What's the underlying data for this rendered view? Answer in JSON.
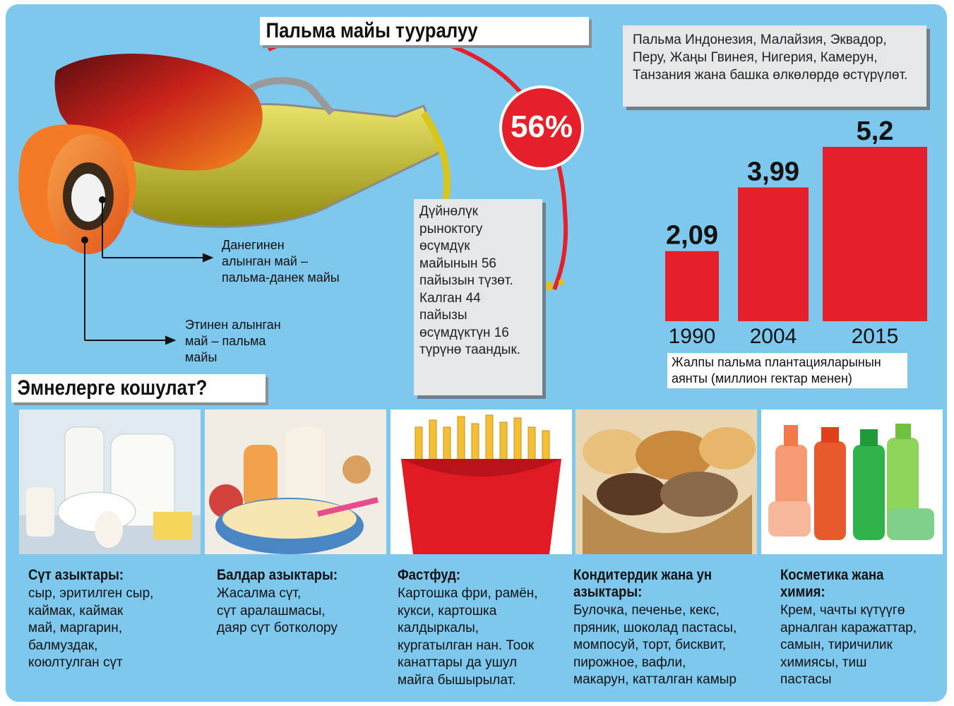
{
  "header": {
    "title": "Пальма майы тууралуу"
  },
  "growing_info": "Пальма Индонезия, Малайзия, Эквадор, Перу, Жаңы Гвинея, Нигерия, Камерун, Танзания жана башка өлкөлөрдө өстүрүлөт.",
  "percent_badge": "56%",
  "market_share": "Дүйнөлүк\nрыноктогу\nөсүмдүк\nмайынын 56\nпайызын түзөт.\nКалган 44\nпайызы\nөсүмдүктүн 16\nтүрүнө таандык.",
  "labels": {
    "kernel": "Данегинен\nалынган май –\nпальма-данек майы",
    "mesocarp": "Этинен алынган\nмай – пальма\nмайы"
  },
  "chart_data": {
    "type": "bar",
    "categories": [
      "1990",
      "2004",
      "2015"
    ],
    "values": [
      2.09,
      3.99,
      5.2
    ],
    "value_labels": [
      "2,09",
      "3,99",
      "5,2"
    ],
    "caption": "Жалпы пальма плантацияларынын\nаянты (миллион гектар менен)",
    "bar_color": "#e5202a"
  },
  "section2": {
    "title": "Эмнелерге кошулат?"
  },
  "categories": [
    {
      "title": "Сүт азыктары:",
      "text": "сыр, эритилген сыр,\nкаймак, каймак\nмай, маргарин,\nбалмуздак,\nкоюлтулган сүт"
    },
    {
      "title": "Балдар азыктары:",
      "text": "Жасалма сүт,\nсүт аралашмасы,\nдаяр сүт ботколору"
    },
    {
      "title": "Фастфуд:",
      "text": "Картошка фри, рамён,\nкукси, картошка\nкалдыркалы,\nкургатылган нан. Тоок\nканаттары да ушул\nмайга бышырылат."
    },
    {
      "title": "Кондитердик жана ун\nазыктары:",
      "text": "Булочка, печенье, кекс,\nпряник, шоколад пастасы,\nмомпосуй, торт, бисквит,\nпирожное, вафли,\nмакарун, катталган камыр"
    },
    {
      "title": "Косметика жана\nхимия:",
      "text": "Крем, чачты күтүүгө\nарналган каражаттар,\nсамын, тиричилик\nхимиясы, тиш\nпастасы"
    }
  ],
  "colors": {
    "background": "#7ec8ee",
    "accent_red": "#e5202a",
    "note_grey": "#e6e7e8"
  }
}
